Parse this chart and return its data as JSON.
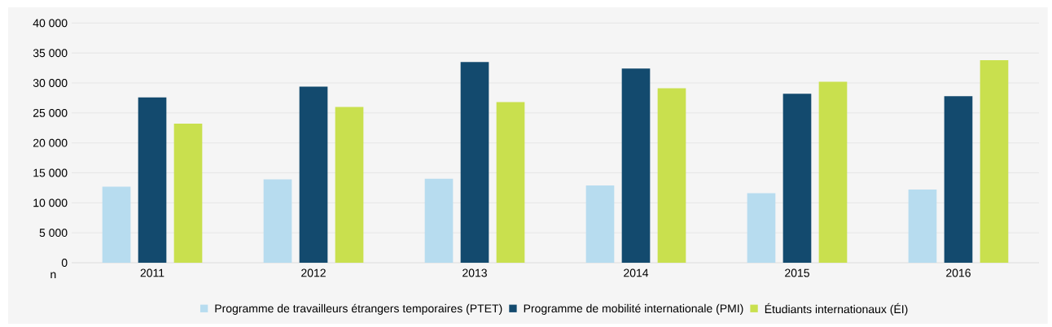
{
  "chart_data": {
    "type": "bar",
    "ylabel": "n",
    "categories": [
      "2011",
      "2012",
      "2013",
      "2014",
      "2015",
      "2016"
    ],
    "series": [
      {
        "name": "Programme de travailleurs étrangers temporaires (PTET)",
        "color": "#b7dcef",
        "values": [
          12700,
          13900,
          14000,
          12900,
          11600,
          12200
        ]
      },
      {
        "name": "Programme de mobilité internationale (PMI)",
        "color": "#134a6e",
        "values": [
          27600,
          29400,
          33500,
          32400,
          28200,
          27800
        ]
      },
      {
        "name": "Étudiants internationaux (ÉI)",
        "color": "#c9e04e",
        "values": [
          23200,
          26000,
          26800,
          29100,
          30200,
          33800
        ]
      }
    ],
    "ylim": [
      0,
      40000
    ],
    "yticks": [
      {
        "value": 0,
        "label": "0"
      },
      {
        "value": 5000,
        "label": "5 000"
      },
      {
        "value": 10000,
        "label": "10 000"
      },
      {
        "value": 15000,
        "label": "15 000"
      },
      {
        "value": 20000,
        "label": "20 000"
      },
      {
        "value": 25000,
        "label": "25 000"
      },
      {
        "value": 30000,
        "label": "30 000"
      },
      {
        "value": 35000,
        "label": "35 000"
      },
      {
        "value": 40000,
        "label": "40 000"
      }
    ],
    "grid": "y",
    "legend": "bottom"
  }
}
